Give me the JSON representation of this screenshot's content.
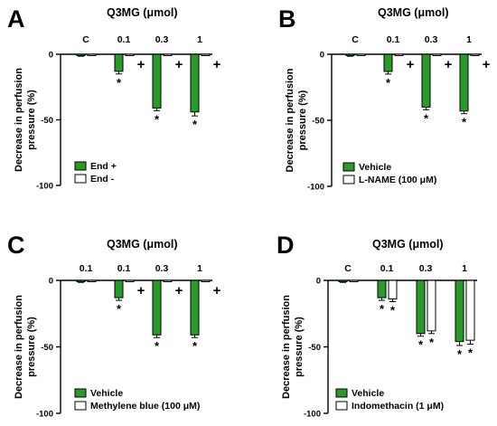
{
  "colors": {
    "vehicle": "#2a9a2a",
    "treated": "#ffffff",
    "outline": "#000000"
  },
  "charts": [
    {
      "panel": "A",
      "chart_data": {
        "type": "bar",
        "title": "Q3MG (μmol)",
        "ylabel": "Decrease in perfusion pressure (%)",
        "ylim": [
          -100,
          0
        ],
        "yticks": [
          "0",
          "-50",
          "-100"
        ],
        "categories": [
          "C",
          "0.1",
          "0.3",
          "1"
        ],
        "series": [
          {
            "name": "End +",
            "fill": "green",
            "values": [
              -1,
              -13,
              -41,
              -44
            ],
            "err": [
              0.5,
              2,
              2,
              3
            ],
            "sig": [
              false,
              true,
              true,
              true
            ]
          },
          {
            "name": "End -",
            "fill": "white",
            "values": [
              -1,
              -1,
              -1,
              -1
            ],
            "err": [
              0.3,
              0.3,
              0.3,
              0.3
            ],
            "sig": [
              false,
              false,
              false,
              false
            ]
          }
        ],
        "annotations": [
          "+",
          "+",
          "+"
        ],
        "legend": "bottom-left"
      }
    },
    {
      "panel": "B",
      "chart_data": {
        "type": "bar",
        "title": "Q3MG (μmol)",
        "ylabel": "Decrease in perfusion pressure (%)",
        "ylim": [
          -100,
          0
        ],
        "yticks": [
          "0",
          "-50",
          "-100"
        ],
        "categories": [
          "C",
          "0.1",
          "0.3",
          "1"
        ],
        "series": [
          {
            "name": "Vehicle",
            "fill": "green",
            "values": [
              -1,
              -13,
              -40,
              -43
            ],
            "err": [
              0.5,
              2,
              2,
              2
            ],
            "sig": [
              false,
              true,
              true,
              true
            ]
          },
          {
            "name": "L-NAME (100 μM)",
            "fill": "white",
            "values": [
              -1,
              -1,
              -1,
              -1
            ],
            "err": [
              0.3,
              0.3,
              0.3,
              0.3
            ],
            "sig": [
              false,
              false,
              false,
              false
            ]
          }
        ],
        "annotations": [
          "+",
          "+",
          "+"
        ],
        "legend": "bottom-left"
      }
    },
    {
      "panel": "C",
      "chart_data": {
        "type": "bar",
        "title": "Q3MG (μmol)",
        "ylabel": "Decrease in perfusion pressure (%)",
        "ylim": [
          -100,
          0
        ],
        "yticks": [
          "0",
          "-50",
          "-100"
        ],
        "categories": [
          "0.1",
          "0.1",
          "0.3",
          "1"
        ],
        "series": [
          {
            "name": "Vehicle",
            "fill": "green",
            "values": [
              -1,
              -13,
              -41,
              -41
            ],
            "err": [
              0.5,
              2,
              2,
              2
            ],
            "sig": [
              false,
              true,
              true,
              true
            ]
          },
          {
            "name": "Methylene blue (100 μM)",
            "fill": "white",
            "values": [
              -1,
              -1,
              -1,
              -1
            ],
            "err": [
              0.3,
              0.3,
              0.3,
              0.3
            ],
            "sig": [
              false,
              false,
              false,
              false
            ]
          }
        ],
        "annotations": [
          "+",
          "+",
          "+"
        ],
        "legend": "bottom-left"
      }
    },
    {
      "panel": "D",
      "chart_data": {
        "type": "bar",
        "title": "Q3MG (μmol)",
        "ylabel": "Decrease in perfusion pressure (%)",
        "ylim": [
          -100,
          0
        ],
        "yticks": [
          "0",
          "-50",
          "-100"
        ],
        "categories": [
          "C",
          "0.1",
          "0.3",
          "1"
        ],
        "series": [
          {
            "name": "Vehicle",
            "fill": "green",
            "values": [
              -1,
              -13,
              -40,
              -46
            ],
            "err": [
              0.5,
              2,
              2,
              3
            ],
            "sig": [
              false,
              true,
              true,
              true
            ]
          },
          {
            "name": "Indomethacin (1 μM)",
            "fill": "white",
            "values": [
              -1,
              -14,
              -38,
              -45
            ],
            "err": [
              0.3,
              2,
              2,
              3
            ],
            "sig": [
              false,
              true,
              true,
              true
            ]
          }
        ],
        "annotations": [],
        "legend": "bottom-left"
      }
    }
  ]
}
